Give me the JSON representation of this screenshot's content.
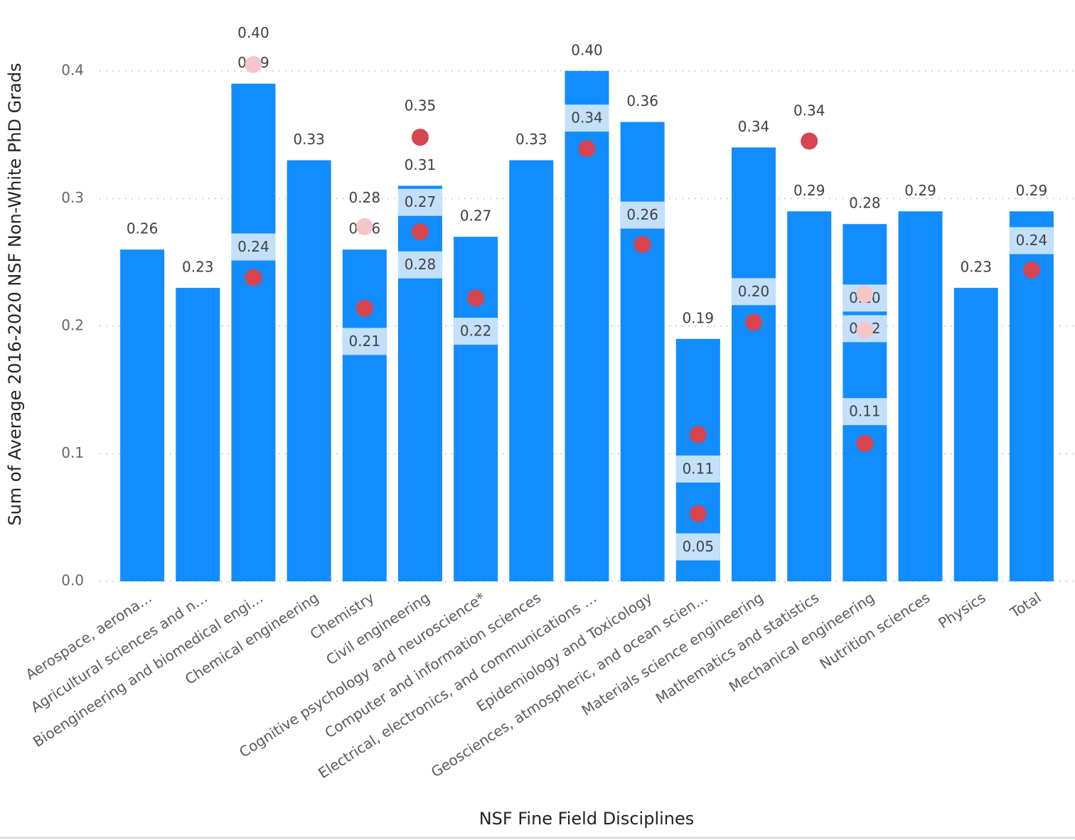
{
  "chart_data": {
    "type": "bar",
    "x_label": "NSF Fine Field Disciplines",
    "y_label": "Sum of Average 2016-2020 NSF Non-White PhD Grads",
    "categories": [
      "Aerospace, aerona…",
      "Agricultural sciences and n…",
      "Bioengineering and biomedical engi…",
      "Chemical engineering",
      "Chemistry",
      "Civil engineering",
      "Cognitive psychology and neuroscience*",
      "Computer and information sciences",
      "Electrical, electronics, and communications …",
      "Epidemiology and Toxicology",
      "Geosciences, atmospheric, and ocean scien…",
      "Materials science engineering",
      "Mathematics and statistics",
      "Mechanical engineering",
      "Nutrition sciences",
      "Physics",
      "Total"
    ],
    "values": [
      0.26,
      0.23,
      0.39,
      0.33,
      0.26,
      0.31,
      0.27,
      0.33,
      0.4,
      0.36,
      0.19,
      0.34,
      0.29,
      0.28,
      0.29,
      0.23,
      0.29
    ],
    "value_labels": [
      "0.26",
      "0.23",
      "0.39",
      "0.33",
      "0.26",
      "0.31",
      "0.27",
      "0.33",
      "0.40",
      "0.36",
      "0.19",
      "0.34",
      "0.29",
      "0.28",
      "0.29",
      "0.23",
      "0.29"
    ],
    "color": "#118dff",
    "ylim": [
      0,
      0.45
    ],
    "yticks": [
      {
        "value": 0,
        "label": "0.0"
      },
      0.1,
      0.2,
      0.3,
      0.4
    ],
    "grid": true,
    "floating_labels": [
      {
        "category": 2,
        "value": 0.429,
        "label": "0.40"
      },
      {
        "category": 4,
        "value": 0.3,
        "label": "0.28"
      },
      {
        "category": 5,
        "value": 0.372,
        "label": "0.35"
      },
      {
        "category": 12,
        "value": 0.368,
        "label": "0.34"
      }
    ],
    "band_labels": [
      {
        "category": 2,
        "value": 0.262,
        "label": "0.24"
      },
      {
        "category": 4,
        "value": 0.188,
        "label": "0.21"
      },
      {
        "category": 5,
        "value": 0.297,
        "label": "0.27"
      },
      {
        "category": 5,
        "value": 0.248,
        "label": "0.28"
      },
      {
        "category": 6,
        "value": 0.196,
        "label": "0.22"
      },
      {
        "category": 8,
        "value": 0.363,
        "label": "0.34"
      },
      {
        "category": 9,
        "value": 0.287,
        "label": "0.26"
      },
      {
        "category": 10,
        "value": 0.088,
        "label": "0.11"
      },
      {
        "category": 10,
        "value": 0.027,
        "label": "0.05"
      },
      {
        "category": 11,
        "value": 0.227,
        "label": "0.20"
      },
      {
        "category": 13,
        "value": 0.222,
        "label": "0.20"
      },
      {
        "category": 13,
        "value": 0.198,
        "label": "0.22"
      },
      {
        "category": 13,
        "value": 0.133,
        "label": "0.11"
      },
      {
        "category": 16,
        "value": 0.267,
        "label": "0.24"
      }
    ],
    "band_color": "#c3e0fa",
    "dots": [
      {
        "category": 2,
        "value": 0.238,
        "color": "#d64550"
      },
      {
        "category": 4,
        "value": 0.214,
        "color": "#d64550"
      },
      {
        "category": 5,
        "value": 0.348,
        "color": "#d64550"
      },
      {
        "category": 5,
        "value": 0.274,
        "color": "#d64550"
      },
      {
        "category": 6,
        "value": 0.222,
        "color": "#d64550"
      },
      {
        "category": 8,
        "value": 0.339,
        "color": "#d64550"
      },
      {
        "category": 9,
        "value": 0.264,
        "color": "#d64550"
      },
      {
        "category": 10,
        "value": 0.115,
        "color": "#d64550"
      },
      {
        "category": 10,
        "value": 0.053,
        "color": "#d64550"
      },
      {
        "category": 11,
        "value": 0.203,
        "color": "#d64550"
      },
      {
        "category": 12,
        "value": 0.345,
        "color": "#d64550"
      },
      {
        "category": 13,
        "value": 0.108,
        "color": "#d64550"
      },
      {
        "category": 16,
        "value": 0.244,
        "color": "#d64550"
      },
      {
        "category": 2,
        "value": 0.405,
        "color": "#f4c6c8"
      },
      {
        "category": 4,
        "value": 0.278,
        "color": "#f4c6c8"
      },
      {
        "category": 13,
        "value": 0.225,
        "color": "#f4c6c8"
      },
      {
        "category": 13,
        "value": 0.197,
        "color": "#f4c6c8"
      }
    ]
  }
}
